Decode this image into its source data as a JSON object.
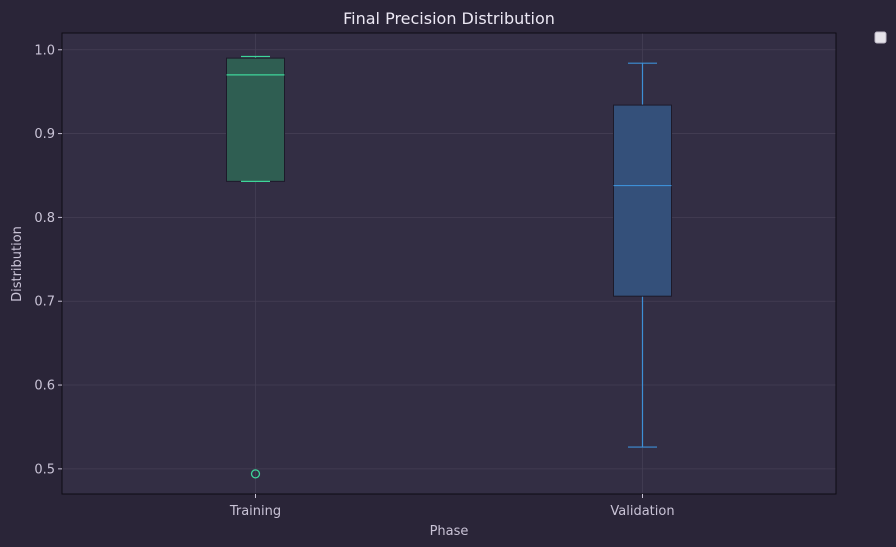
{
  "chart_data": {
    "type": "box",
    "title": "Final Precision Distribution",
    "xlabel": "Phase",
    "ylabel": "Distribution",
    "ylim": [
      0.47,
      1.02
    ],
    "yticks": [
      "0.5",
      "0.6",
      "0.7",
      "0.8",
      "0.9",
      "1.0"
    ],
    "grid": true,
    "legend": "top-right, empty",
    "categories": [
      "Training",
      "Validation"
    ],
    "boxes": [
      {
        "category": "Training",
        "whisker_low": 0.843,
        "q1": 0.843,
        "median": 0.97,
        "q3": 0.99,
        "whisker_high": 0.992,
        "outliers": [
          0.494
        ],
        "fill": "#2f5e52",
        "line": "#3ed69a"
      },
      {
        "category": "Validation",
        "whisker_low": 0.526,
        "q1": 0.706,
        "median": 0.838,
        "q3": 0.934,
        "whisker_high": 0.984,
        "outliers": [],
        "fill": "#34507a",
        "line": "#3d8fd6"
      }
    ]
  },
  "colors": {
    "background": "#2a2538",
    "plot_area": "#332e44",
    "grid": "#453f55",
    "axis": "#0e0c14",
    "text": "#c9c3d6"
  }
}
